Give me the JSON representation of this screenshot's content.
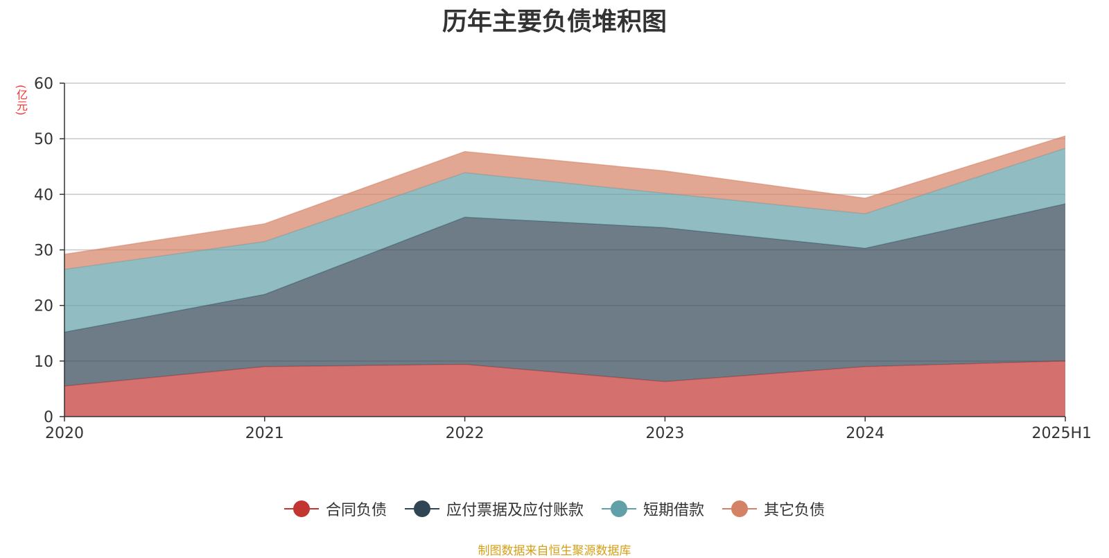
{
  "title": "历年主要负债堆积图",
  "unit_label": "(亿元)",
  "source": "制图数据来自恒生聚源数据库",
  "chart_data": {
    "type": "area",
    "stacked": true,
    "title": "历年主要负债堆积图",
    "ylabel": "(亿元)",
    "categories": [
      "2020",
      "2021",
      "2022",
      "2023",
      "2024",
      "2025H1"
    ],
    "ylim": [
      0,
      60
    ],
    "yticks": [
      0,
      10,
      20,
      30,
      40,
      50,
      60
    ],
    "grid": true,
    "legend_position": "bottom-center",
    "series": [
      {
        "name": "合同负债",
        "values": [
          5.5,
          9.0,
          9.4,
          6.3,
          9.0,
          10.0
        ],
        "color": "#c23531"
      },
      {
        "name": "应付票据及应付账款",
        "values": [
          9.7,
          13.0,
          26.5,
          27.7,
          21.3,
          28.3
        ],
        "color": "#2f4554"
      },
      {
        "name": "短期借款",
        "values": [
          11.3,
          9.5,
          8.0,
          6.2,
          6.2,
          10.0
        ],
        "color": "#61a0a8"
      },
      {
        "name": "其它负债",
        "values": [
          2.7,
          3.2,
          3.8,
          4.0,
          2.8,
          2.2
        ],
        "color": "#d48265"
      }
    ]
  }
}
